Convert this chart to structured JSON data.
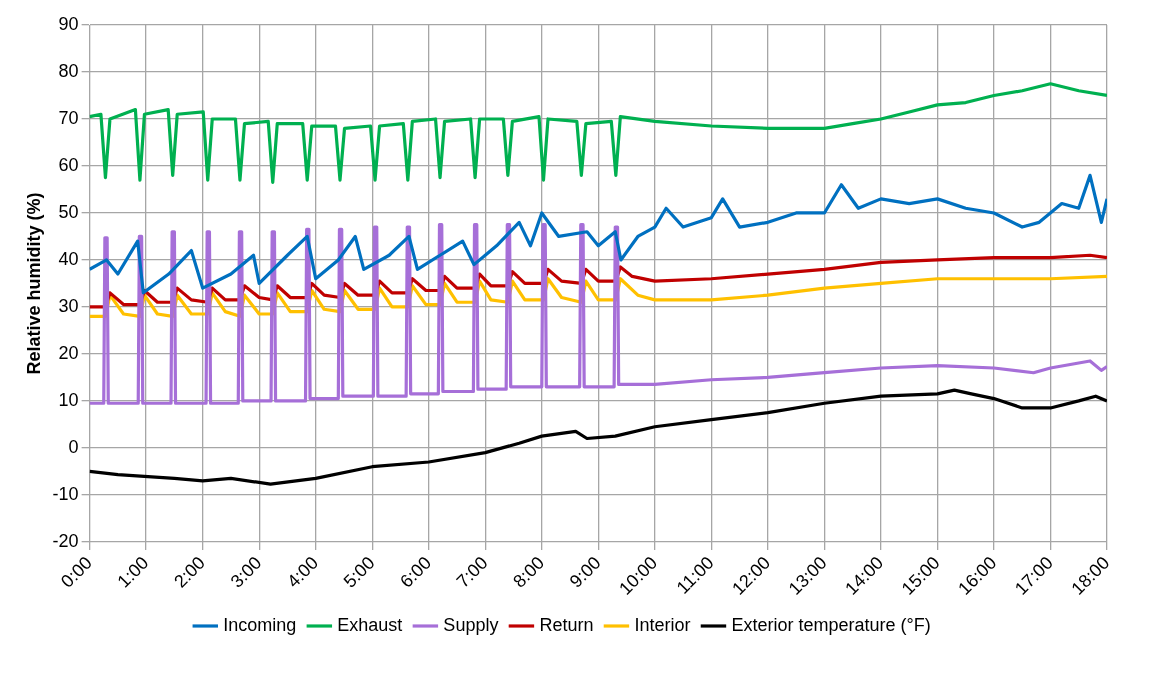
{
  "chart_data": {
    "type": "line",
    "ylabel": "Relative humidity (%)",
    "xlim": [
      0,
      18
    ],
    "xticks": [
      {
        "value": 0,
        "label": "0:00"
      },
      {
        "value": 1,
        "label": "1:00"
      },
      {
        "value": 2,
        "label": "2:00"
      },
      {
        "value": 3,
        "label": "3:00"
      },
      {
        "value": 4,
        "label": "4:00"
      },
      {
        "value": 5,
        "label": "5:00"
      },
      {
        "value": 6,
        "label": "6:00"
      },
      {
        "value": 7,
        "label": "7:00"
      },
      {
        "value": 8,
        "label": "8:00"
      },
      {
        "value": 9,
        "label": "9:00"
      },
      {
        "value": 10,
        "label": "10:00"
      },
      {
        "value": 11,
        "label": "11:00"
      },
      {
        "value": 12,
        "label": "12:00"
      },
      {
        "value": 13,
        "label": "13:00"
      },
      {
        "value": 14,
        "label": "14:00"
      },
      {
        "value": 15,
        "label": "15:00"
      },
      {
        "value": 16,
        "label": "16:00"
      },
      {
        "value": 17,
        "label": "17:00"
      },
      {
        "value": 18,
        "label": "18:00"
      }
    ],
    "ylim": [
      -20,
      90
    ],
    "yticks": [
      -20,
      -10,
      0,
      10,
      20,
      30,
      40,
      50,
      60,
      70,
      80,
      90
    ],
    "grid": true,
    "legend": "bottom",
    "marker": "none",
    "line_style": "solid",
    "series": [
      {
        "name": "Incoming",
        "color": "#0070c0",
        "x": [
          0,
          0.3,
          0.5,
          0.85,
          0.95,
          1.4,
          1.8,
          2.0,
          2.5,
          2.9,
          3.0,
          3.5,
          3.85,
          4.0,
          4.4,
          4.7,
          4.85,
          5.3,
          5.65,
          5.8,
          6.2,
          6.6,
          6.8,
          7.2,
          7.6,
          7.8,
          8.0,
          8.3,
          8.8,
          9.0,
          9.3,
          9.4,
          9.7,
          10.0,
          10.2,
          10.5,
          11,
          11.2,
          11.5,
          12,
          12.5,
          13,
          13.3,
          13.6,
          14,
          14.5,
          15,
          15.5,
          16,
          16.5,
          16.8,
          17.2,
          17.5,
          17.7,
          17.9,
          18
        ],
        "values": [
          38,
          40,
          37,
          44,
          33,
          37,
          42,
          34,
          37,
          41,
          35,
          41,
          45,
          36,
          40,
          45,
          38,
          41,
          45,
          38,
          41,
          44,
          39,
          43,
          48,
          43,
          50,
          45,
          46,
          43,
          46,
          40,
          45,
          47,
          51,
          47,
          49,
          53,
          47,
          48,
          50,
          50,
          56,
          51,
          53,
          52,
          53,
          51,
          50,
          47,
          48,
          52,
          51,
          58,
          48,
          53
        ]
      },
      {
        "name": "Exhaust",
        "color": "#00b050",
        "x": [
          0,
          0.2,
          0.28,
          0.36,
          0.81,
          0.89,
          0.97,
          1.39,
          1.47,
          1.55,
          2.01,
          2.09,
          2.17,
          2.58,
          2.66,
          2.74,
          3.16,
          3.24,
          3.32,
          3.77,
          3.85,
          3.93,
          4.35,
          4.43,
          4.51,
          4.97,
          5.05,
          5.13,
          5.55,
          5.63,
          5.71,
          6.12,
          6.2,
          6.28,
          6.74,
          6.82,
          6.9,
          7.32,
          7.4,
          7.48,
          7.95,
          8.03,
          8.11,
          8.62,
          8.7,
          8.78,
          9.23,
          9.31,
          9.39,
          10,
          11,
          12,
          13,
          13.5,
          14,
          14.5,
          15,
          15.5,
          16,
          16.5,
          17,
          17.5,
          18
        ],
        "values": [
          70.5,
          71,
          57.5,
          70,
          72,
          57,
          71,
          72,
          58,
          71,
          71.5,
          57,
          70,
          70,
          57,
          69,
          69.5,
          56.5,
          69,
          69,
          57,
          68.5,
          68.5,
          57,
          68,
          68.5,
          57,
          68.5,
          69,
          57,
          69.5,
          70,
          57.5,
          69.5,
          70,
          57.5,
          70,
          70,
          58,
          69.5,
          70.5,
          57,
          70,
          69.5,
          58,
          69,
          69.5,
          58,
          70.5,
          69.5,
          68.5,
          68,
          68,
          69,
          70,
          71.5,
          73,
          73.5,
          75,
          76,
          77.5,
          76,
          75
        ]
      },
      {
        "name": "Supply",
        "color": "#a66fd8",
        "x": [
          0,
          0.25,
          0.27,
          0.31,
          0.33,
          0.86,
          0.88,
          0.92,
          0.94,
          1.44,
          1.46,
          1.5,
          1.52,
          2.06,
          2.08,
          2.12,
          2.14,
          2.63,
          2.65,
          2.69,
          2.71,
          3.21,
          3.23,
          3.27,
          3.29,
          3.82,
          3.84,
          3.88,
          3.9,
          4.4,
          4.42,
          4.46,
          4.48,
          5.02,
          5.04,
          5.08,
          5.1,
          5.6,
          5.62,
          5.66,
          5.68,
          6.17,
          6.19,
          6.23,
          6.25,
          6.79,
          6.81,
          6.85,
          6.87,
          7.37,
          7.39,
          7.43,
          7.45,
          8,
          8.02,
          8.06,
          8.08,
          8.67,
          8.69,
          8.73,
          8.75,
          9.28,
          9.3,
          9.34,
          9.36,
          10,
          11,
          12,
          13,
          14,
          15,
          16,
          16.7,
          17,
          17.7,
          17.9,
          18
        ],
        "values": [
          9.5,
          9.5,
          44.7,
          44.7,
          9.5,
          9.5,
          45,
          45,
          9.5,
          9.5,
          46,
          46,
          9.5,
          9.5,
          46,
          46,
          9.5,
          9.5,
          46,
          46,
          10,
          10,
          46,
          46,
          10,
          10,
          46.5,
          46.5,
          10.5,
          10.5,
          46.5,
          46.5,
          11,
          11,
          47,
          47,
          11,
          11,
          47,
          47,
          11.5,
          11.5,
          47.5,
          47.5,
          12,
          12,
          47.5,
          47.5,
          12.5,
          12.5,
          47.5,
          47.5,
          13,
          13,
          47.5,
          47.5,
          13,
          13,
          47.5,
          47.5,
          13,
          13,
          47,
          47,
          13.5,
          13.5,
          14.5,
          15,
          16,
          17,
          17.5,
          17,
          16,
          17,
          18.5,
          16.5,
          17.3
        ]
      },
      {
        "name": "Return",
        "color": "#c00000",
        "x": [
          0,
          0.28,
          0.36,
          0.6,
          0.89,
          0.97,
          1.2,
          1.47,
          1.55,
          1.8,
          2.09,
          2.17,
          2.4,
          2.66,
          2.74,
          3.0,
          3.24,
          3.32,
          3.55,
          3.85,
          3.93,
          4.15,
          4.43,
          4.51,
          4.75,
          5.05,
          5.13,
          5.35,
          5.63,
          5.71,
          5.95,
          6.2,
          6.28,
          6.5,
          6.82,
          6.9,
          7.1,
          7.4,
          7.48,
          7.7,
          8.03,
          8.11,
          8.35,
          8.7,
          8.78,
          9.0,
          9.31,
          9.39,
          9.6,
          10,
          11,
          12,
          13,
          14,
          15,
          16,
          17,
          17.7,
          18
        ],
        "values": [
          30,
          30,
          33,
          30.5,
          30.5,
          33.5,
          31,
          31,
          34,
          31.5,
          31,
          34,
          31.5,
          31.5,
          34.5,
          32,
          31.5,
          34.5,
          32,
          32,
          35,
          32.5,
          32,
          35,
          32.5,
          32.5,
          35.5,
          33,
          33,
          36,
          33.5,
          33.5,
          36.5,
          34,
          34,
          37,
          34.5,
          34.5,
          37.5,
          35,
          35,
          38,
          35.5,
          35,
          38,
          35.5,
          35.5,
          38.5,
          36.5,
          35.5,
          36,
          37,
          38,
          39.5,
          40,
          40.5,
          40.5,
          41,
          40.5
        ]
      },
      {
        "name": "Interior",
        "color": "#ffc000",
        "x": [
          0,
          0.28,
          0.36,
          0.6,
          0.89,
          0.97,
          1.2,
          1.47,
          1.55,
          1.8,
          2.09,
          2.17,
          2.4,
          2.66,
          2.74,
          3.0,
          3.24,
          3.32,
          3.55,
          3.85,
          3.93,
          4.15,
          4.43,
          4.51,
          4.75,
          5.05,
          5.13,
          5.35,
          5.63,
          5.71,
          5.95,
          6.2,
          6.28,
          6.5,
          6.82,
          6.9,
          7.1,
          7.4,
          7.48,
          7.7,
          8.03,
          8.11,
          8.35,
          8.7,
          8.78,
          9.0,
          9.31,
          9.39,
          9.7,
          10,
          11,
          12,
          13,
          14,
          15,
          16,
          17,
          18
        ],
        "values": [
          28,
          28,
          32.5,
          28.5,
          28,
          32.5,
          28.5,
          28,
          32.5,
          28.5,
          28.5,
          33,
          29,
          28,
          32.5,
          28.5,
          28.5,
          33,
          29,
          29,
          33.5,
          29.5,
          29,
          33.5,
          29.5,
          29.5,
          34,
          30,
          30,
          34.5,
          30.5,
          30.5,
          35,
          31,
          31,
          35.5,
          31.5,
          31,
          35.5,
          31.5,
          31.5,
          36,
          32,
          31,
          35.5,
          31.5,
          31.5,
          36,
          32.5,
          31.5,
          31.5,
          32.5,
          34,
          35,
          36,
          36,
          36,
          36.5
        ]
      },
      {
        "name": "Exterior temperature (°F)",
        "color": "#000000",
        "x": [
          0,
          0.5,
          1.5,
          2,
          2.5,
          3.2,
          4,
          5,
          6,
          7,
          7.6,
          8,
          8.6,
          8.8,
          9.3,
          10,
          11,
          12,
          13,
          14,
          15,
          15.3,
          15.6,
          16,
          16.5,
          17,
          17.5,
          17.8,
          18
        ],
        "values": [
          -5,
          -5.7,
          -6.5,
          -7,
          -6.5,
          -7.7,
          -6.5,
          -4,
          -3,
          -1,
          1,
          2.5,
          3.5,
          2,
          2.5,
          4.5,
          6,
          7.5,
          9.5,
          11,
          11.5,
          12.3,
          11.5,
          10.5,
          8.5,
          8.5,
          10,
          11,
          10
        ]
      }
    ]
  }
}
